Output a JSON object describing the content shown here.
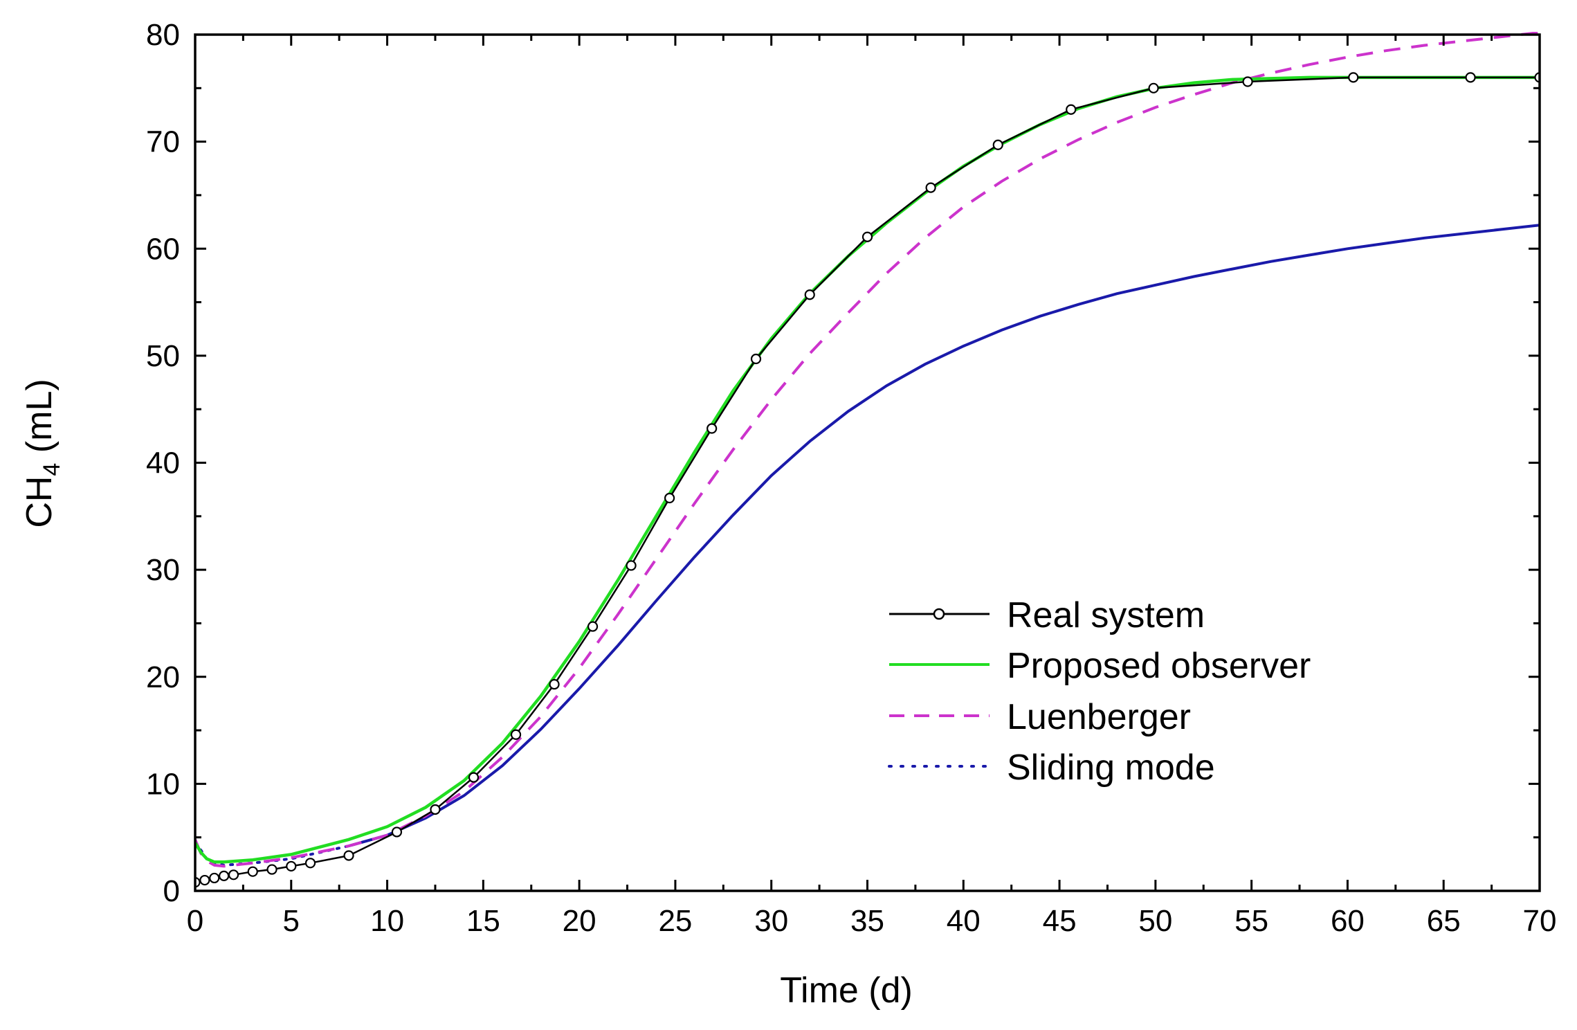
{
  "chart_data": {
    "type": "line",
    "title": "",
    "xlabel": "Time (d)",
    "ylabel_main": "CH",
    "ylabel_sub": "4",
    "ylabel_unit": " (mL)",
    "xlim": [
      0,
      70
    ],
    "ylim": [
      0,
      80
    ],
    "xticks": [
      0,
      5,
      10,
      15,
      20,
      25,
      30,
      35,
      40,
      45,
      50,
      55,
      60,
      65,
      70
    ],
    "yticks": [
      0,
      10,
      20,
      30,
      40,
      50,
      60,
      70,
      80
    ],
    "xtick_labels": [
      "0",
      "5",
      "10",
      "15",
      "20",
      "25",
      "30",
      "35",
      "40",
      "45",
      "50",
      "55",
      "60",
      "65",
      "70"
    ],
    "ytick_labels": [
      "0",
      "10",
      "20",
      "30",
      "40",
      "50",
      "60",
      "70",
      "80"
    ],
    "legend_position": "center-right",
    "series": [
      {
        "name": "Real system",
        "color": "#000000",
        "style": "solid-circle",
        "x": [
          0,
          0.5,
          1,
          1.5,
          2,
          3,
          4,
          5,
          6,
          8,
          10.5,
          12.5,
          14.5,
          16.7,
          18.7,
          20.7,
          22.7,
          24.7,
          26.9,
          29.2,
          32,
          35,
          38.3,
          41.8,
          45.6,
          49.9,
          54.8,
          60.3,
          66.4,
          70
        ],
        "y": [
          0.8,
          1.0,
          1.2,
          1.4,
          1.5,
          1.8,
          2.0,
          2.3,
          2.6,
          3.3,
          5.5,
          7.6,
          10.6,
          14.6,
          19.3,
          24.7,
          30.4,
          36.7,
          43.2,
          49.7,
          55.7,
          61.1,
          65.7,
          69.7,
          73.0,
          75.0,
          75.6,
          76.0,
          76.0,
          76.0
        ]
      },
      {
        "name": "Proposed observer",
        "color": "#22dd22",
        "style": "solid",
        "x": [
          0,
          0.3,
          0.6,
          1,
          1.5,
          3,
          5,
          8,
          10,
          12,
          14,
          16,
          18,
          20,
          22,
          24,
          26,
          28,
          30,
          32,
          34,
          36,
          38,
          40,
          42,
          44,
          46,
          48,
          50,
          52,
          54,
          56,
          58,
          60,
          65,
          70
        ],
        "y": [
          4.5,
          3.6,
          3.0,
          2.7,
          2.7,
          2.9,
          3.4,
          4.8,
          6.0,
          7.8,
          10.3,
          13.8,
          18.2,
          23.3,
          29.0,
          35.0,
          41.0,
          46.7,
          51.6,
          55.8,
          59.3,
          62.4,
          65.2,
          67.7,
          69.8,
          71.6,
          73.1,
          74.2,
          75.0,
          75.5,
          75.8,
          75.9,
          76.0,
          76.0,
          76.0,
          76.0
        ]
      },
      {
        "name": "Luenberger",
        "color": "#cc33cc",
        "style": "dashed",
        "x": [
          0,
          0.3,
          0.6,
          1,
          1.5,
          3,
          5,
          8,
          10,
          12,
          14,
          16,
          18,
          20,
          22,
          24,
          26,
          28,
          30,
          32,
          34,
          36,
          38,
          40,
          42,
          44,
          46,
          48,
          50,
          52,
          54,
          56,
          58,
          60,
          62,
          64,
          66,
          68,
          70
        ],
        "y": [
          4.8,
          3.5,
          2.8,
          2.4,
          2.3,
          2.6,
          3.1,
          4.2,
          5.2,
          7.0,
          9.3,
          12.5,
          16.3,
          20.8,
          25.8,
          31.0,
          36.2,
          41.2,
          45.9,
          50.2,
          54.0,
          57.7,
          61.0,
          63.9,
          66.3,
          68.4,
          70.2,
          71.8,
          73.2,
          74.4,
          75.5,
          76.4,
          77.2,
          77.9,
          78.5,
          79.0,
          79.4,
          79.8,
          80.2
        ]
      },
      {
        "name": "Sliding mode",
        "color": "#1a1aaa",
        "style": "dotted-then-solid",
        "x": [
          0,
          0.3,
          0.6,
          1,
          1.5,
          3,
          5,
          8,
          10,
          12,
          14,
          16,
          18,
          20,
          22,
          24,
          26,
          28,
          30,
          32,
          34,
          36,
          38,
          40,
          42,
          44,
          46,
          48,
          50,
          52,
          54,
          56,
          58,
          60,
          62,
          64,
          66,
          68,
          70
        ],
        "y": [
          4.5,
          3.8,
          3.0,
          2.6,
          2.4,
          2.6,
          3.0,
          4.2,
          5.2,
          6.8,
          8.9,
          11.7,
          15.1,
          18.9,
          22.9,
          27.1,
          31.2,
          35.1,
          38.8,
          42.0,
          44.8,
          47.2,
          49.2,
          50.9,
          52.4,
          53.7,
          54.8,
          55.8,
          56.6,
          57.4,
          58.1,
          58.8,
          59.4,
          60.0,
          60.5,
          61.0,
          61.4,
          61.8,
          62.2
        ]
      }
    ]
  }
}
